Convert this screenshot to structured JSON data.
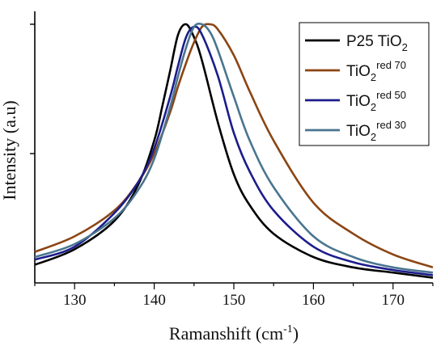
{
  "chart_data": {
    "type": "line",
    "title": "",
    "xlabel": "Ramanshift (cm",
    "xlabel_sup": "-1",
    "xlabel_tail": ")",
    "ylabel": "Intensity (a.u)",
    "xlim": [
      125,
      175
    ],
    "ylim": [
      0,
      1.05
    ],
    "x_ticks": [
      130,
      140,
      150,
      160,
      170
    ],
    "x_tick_labels": [
      "130",
      "140",
      "150",
      "160",
      "170"
    ],
    "grid": false,
    "legend_position": "top-right",
    "series": [
      {
        "name": "P25 TiO",
        "name_sub": "2",
        "name_sup": "",
        "color": "#000000",
        "x": [
          125,
          130,
          135,
          138,
          140,
          141,
          142,
          143,
          144,
          145,
          146,
          148,
          150,
          152,
          155,
          160,
          165,
          170,
          175
        ],
        "y": [
          0.07,
          0.13,
          0.24,
          0.38,
          0.55,
          0.68,
          0.82,
          0.96,
          1.0,
          0.95,
          0.86,
          0.62,
          0.42,
          0.3,
          0.19,
          0.1,
          0.06,
          0.04,
          0.02
        ]
      },
      {
        "name": "TiO",
        "name_sub": "2",
        "name_sup": "red 70",
        "color": "#8B4513",
        "x": [
          125,
          130,
          135,
          138,
          140,
          142,
          143,
          144,
          145,
          146,
          147,
          148,
          150,
          152,
          155,
          160,
          165,
          170,
          175
        ],
        "y": [
          0.12,
          0.18,
          0.28,
          0.39,
          0.5,
          0.66,
          0.76,
          0.85,
          0.93,
          0.99,
          1.0,
          0.98,
          0.88,
          0.74,
          0.55,
          0.31,
          0.19,
          0.11,
          0.06
        ]
      },
      {
        "name": "TiO",
        "name_sub": "2",
        "name_sup": "red 50",
        "color": "#1c1c8c",
        "x": [
          125,
          130,
          135,
          138,
          140,
          142,
          143,
          144,
          145,
          146,
          148,
          150,
          152,
          155,
          160,
          165,
          170,
          175
        ],
        "y": [
          0.09,
          0.14,
          0.27,
          0.39,
          0.52,
          0.72,
          0.84,
          0.95,
          0.99,
          0.96,
          0.8,
          0.58,
          0.43,
          0.28,
          0.14,
          0.08,
          0.05,
          0.03
        ]
      },
      {
        "name": "TiO",
        "name_sub": "2",
        "name_sup": "red 30",
        "color": "#4a7590",
        "x": [
          125,
          130,
          135,
          138,
          140,
          142,
          143,
          144,
          145,
          146,
          147,
          148,
          150,
          152,
          155,
          160,
          165,
          170,
          175
        ],
        "y": [
          0.1,
          0.15,
          0.25,
          0.36,
          0.48,
          0.68,
          0.8,
          0.91,
          0.99,
          1.0,
          0.97,
          0.9,
          0.72,
          0.55,
          0.37,
          0.18,
          0.1,
          0.06,
          0.04
        ]
      }
    ]
  }
}
